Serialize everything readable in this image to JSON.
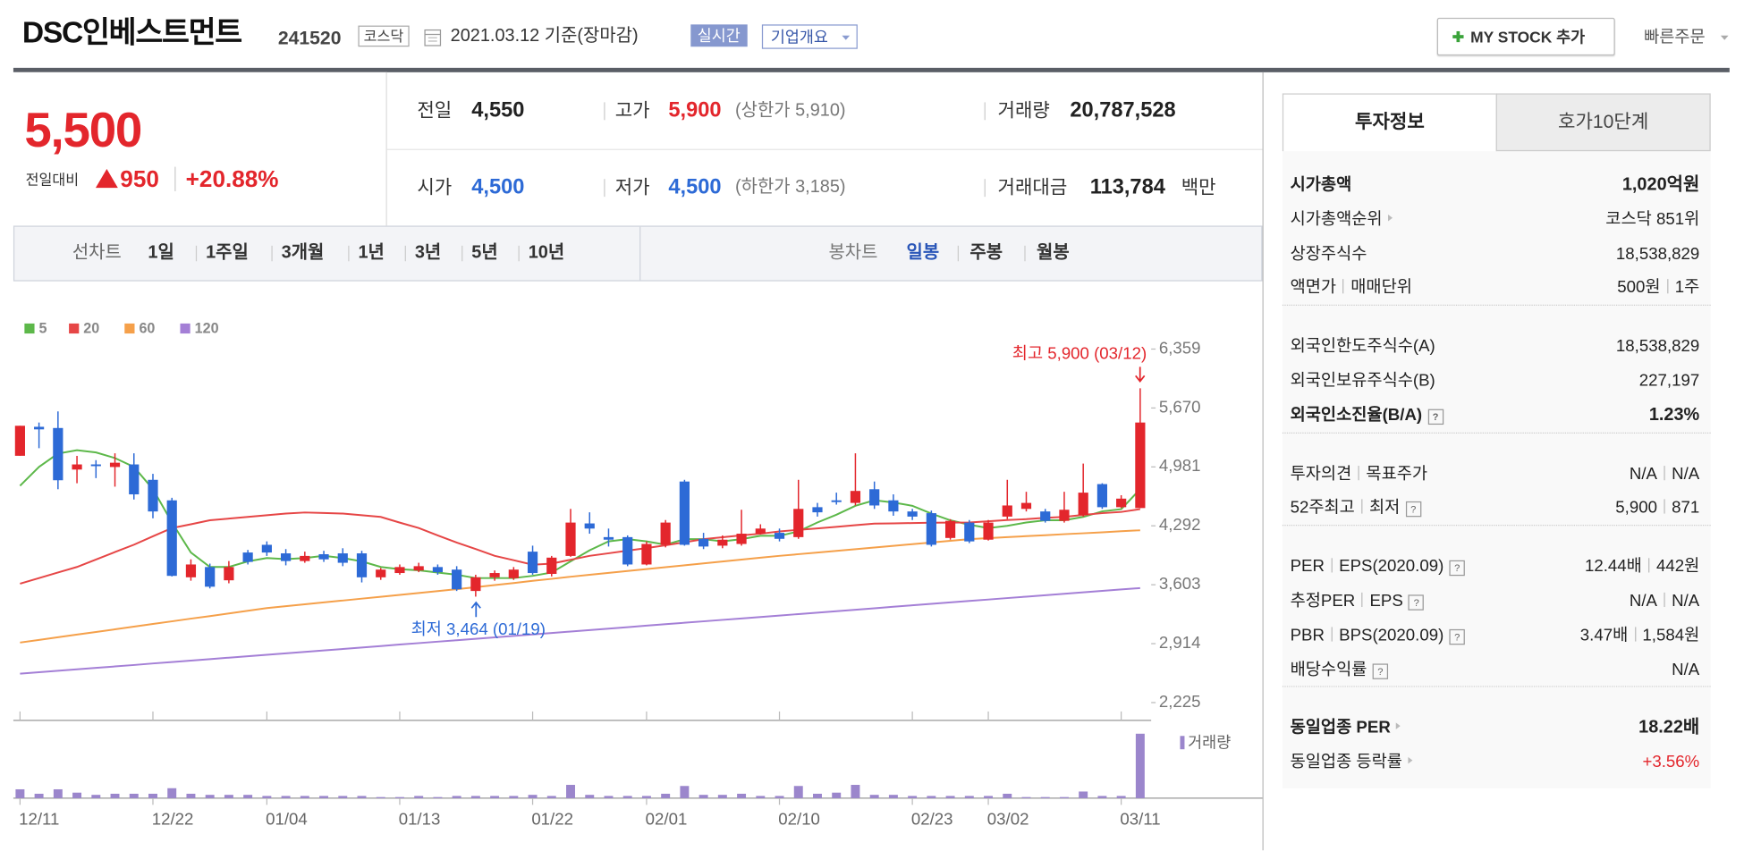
{
  "header": {
    "name": "DSC인베스트먼트",
    "code": "241520",
    "market": "코스닥",
    "date": "2021.03.12 기준(장마감)",
    "realtime": "실시간",
    "company": "기업개요",
    "mystock": "MY STOCK 추가",
    "quick_order": "빠른주문"
  },
  "price": {
    "current": "5,500",
    "change_label": "전일대비",
    "change": "950",
    "change_pct": "+20.88%"
  },
  "summary": {
    "prev": {
      "label": "전일",
      "value": "4,550"
    },
    "high": {
      "label": "고가",
      "value": "5,900",
      "note": "(상한가 5,910)"
    },
    "volume": {
      "label": "거래량",
      "value": "20,787,528"
    },
    "open": {
      "label": "시가",
      "value": "4,500"
    },
    "low": {
      "label": "저가",
      "value": "4,500",
      "note": "(하한가 3,185)"
    },
    "amount": {
      "label": "거래대금",
      "value": "113,784",
      "unit": "백만"
    }
  },
  "tabs": {
    "line_label": "선차트",
    "periods": [
      "1일",
      "1주일",
      "3개월",
      "1년",
      "3년",
      "5년",
      "10년"
    ],
    "candle_label": "봉차트",
    "candle_periods": [
      "일봉",
      "주봉",
      "월봉"
    ],
    "selected_candle": "일봉"
  },
  "chart_data": {
    "type": "candlestick",
    "up_color": "#e3262c",
    "down_color": "#2d6ad6",
    "categories": [
      "12/11",
      null,
      null,
      null,
      null,
      null,
      null,
      "12/22",
      null,
      null,
      null,
      null,
      null,
      "01/04",
      null,
      null,
      null,
      null,
      null,
      null,
      "01/13",
      null,
      null,
      null,
      null,
      null,
      null,
      "01/22",
      null,
      null,
      null,
      null,
      null,
      "02/01",
      null,
      null,
      null,
      null,
      null,
      null,
      "02/10",
      null,
      null,
      null,
      null,
      null,
      null,
      "02/23",
      null,
      null,
      null,
      "03/02",
      null,
      null,
      null,
      null,
      null,
      null,
      "03/11",
      null
    ],
    "ylim": [
      2017,
      6411
    ],
    "yticks": [
      {
        "value": 6359,
        "label": "6,359"
      },
      {
        "value": 5670,
        "label": "5,670"
      },
      {
        "value": 4981,
        "label": "4,981"
      },
      {
        "value": 4292,
        "label": "4,292"
      },
      {
        "value": 3603,
        "label": "3,603"
      },
      {
        "value": 2914,
        "label": "2,914"
      },
      {
        "value": 2225,
        "label": "2,225"
      }
    ],
    "candles": [
      {
        "open": 5111,
        "high": 5462,
        "low": 5111,
        "close": 5462
      },
      {
        "open": 5450,
        "high": 5500,
        "low": 5200,
        "close": 5420
      },
      {
        "open": 5436,
        "high": 5630,
        "low": 4720,
        "close": 4825
      },
      {
        "open": 4950,
        "high": 5110,
        "low": 4790,
        "close": 5010
      },
      {
        "open": 5010,
        "high": 5060,
        "low": 4850,
        "close": 4990
      },
      {
        "open": 4980,
        "high": 5140,
        "low": 4750,
        "close": 5030
      },
      {
        "open": 5010,
        "high": 5140,
        "low": 4600,
        "close": 4660
      },
      {
        "open": 4830,
        "high": 4900,
        "low": 4380,
        "close": 4460
      },
      {
        "open": 4590,
        "high": 4620,
        "low": 3700,
        "close": 3707
      },
      {
        "open": 3690,
        "high": 3900,
        "low": 3650,
        "close": 3840
      },
      {
        "open": 3810,
        "high": 3850,
        "low": 3560,
        "close": 3580
      },
      {
        "open": 3655,
        "high": 3880,
        "low": 3620,
        "close": 3810
      },
      {
        "open": 3980,
        "high": 4010,
        "low": 3840,
        "close": 3870
      },
      {
        "open": 4070,
        "high": 4110,
        "low": 3940,
        "close": 3980
      },
      {
        "open": 3970,
        "high": 4020,
        "low": 3830,
        "close": 3880
      },
      {
        "open": 3880,
        "high": 3990,
        "low": 3860,
        "close": 3940
      },
      {
        "open": 3960,
        "high": 4000,
        "low": 3870,
        "close": 3900
      },
      {
        "open": 3970,
        "high": 4030,
        "low": 3820,
        "close": 3860
      },
      {
        "open": 3970,
        "high": 4000,
        "low": 3630,
        "close": 3690
      },
      {
        "open": 3690,
        "high": 3800,
        "low": 3660,
        "close": 3780
      },
      {
        "open": 3740,
        "high": 3840,
        "low": 3720,
        "close": 3810
      },
      {
        "open": 3770,
        "high": 3860,
        "low": 3750,
        "close": 3820
      },
      {
        "open": 3810,
        "high": 3840,
        "low": 3720,
        "close": 3750
      },
      {
        "open": 3780,
        "high": 3820,
        "low": 3530,
        "close": 3550
      },
      {
        "open": 3530,
        "high": 3720,
        "low": 3464,
        "close": 3690
      },
      {
        "open": 3690,
        "high": 3770,
        "low": 3650,
        "close": 3740
      },
      {
        "open": 3680,
        "high": 3810,
        "low": 3660,
        "close": 3780
      },
      {
        "open": 3990,
        "high": 4060,
        "low": 3720,
        "close": 3740
      },
      {
        "open": 3730,
        "high": 3940,
        "low": 3700,
        "close": 3920
      },
      {
        "open": 3940,
        "high": 4490,
        "low": 3930,
        "close": 4330
      },
      {
        "open": 4320,
        "high": 4450,
        "low": 4200,
        "close": 4260
      },
      {
        "open": 4160,
        "high": 4260,
        "low": 4050,
        "close": 4130
      },
      {
        "open": 4160,
        "high": 4180,
        "low": 3820,
        "close": 3840
      },
      {
        "open": 3840,
        "high": 4110,
        "low": 3830,
        "close": 4080
      },
      {
        "open": 4070,
        "high": 4360,
        "low": 4040,
        "close": 4330
      },
      {
        "open": 4810,
        "high": 4830,
        "low": 4060,
        "close": 4070
      },
      {
        "open": 4140,
        "high": 4210,
        "low": 4020,
        "close": 4050
      },
      {
        "open": 4060,
        "high": 4180,
        "low": 4030,
        "close": 4130
      },
      {
        "open": 4080,
        "high": 4480,
        "low": 4060,
        "close": 4200
      },
      {
        "open": 4200,
        "high": 4310,
        "low": 4190,
        "close": 4260
      },
      {
        "open": 4210,
        "high": 4260,
        "low": 4110,
        "close": 4140
      },
      {
        "open": 4160,
        "high": 4830,
        "low": 4140,
        "close": 4490
      },
      {
        "open": 4510,
        "high": 4560,
        "low": 4400,
        "close": 4450
      },
      {
        "open": 4590,
        "high": 4680,
        "low": 4540,
        "close": 4570
      },
      {
        "open": 4560,
        "high": 5140,
        "low": 4530,
        "close": 4700
      },
      {
        "open": 4720,
        "high": 4810,
        "low": 4490,
        "close": 4530
      },
      {
        "open": 4590,
        "high": 4660,
        "low": 4410,
        "close": 4460
      },
      {
        "open": 4460,
        "high": 4490,
        "low": 4360,
        "close": 4400
      },
      {
        "open": 4440,
        "high": 4470,
        "low": 4050,
        "close": 4070
      },
      {
        "open": 4150,
        "high": 4370,
        "low": 4130,
        "close": 4350
      },
      {
        "open": 4330,
        "high": 4360,
        "low": 4090,
        "close": 4110
      },
      {
        "open": 4130,
        "high": 4360,
        "low": 4120,
        "close": 4330
      },
      {
        "open": 4400,
        "high": 4830,
        "low": 4370,
        "close": 4530
      },
      {
        "open": 4490,
        "high": 4690,
        "low": 4460,
        "close": 4560
      },
      {
        "open": 4460,
        "high": 4490,
        "low": 4330,
        "close": 4350
      },
      {
        "open": 4350,
        "high": 4690,
        "low": 4330,
        "close": 4480
      },
      {
        "open": 4420,
        "high": 5020,
        "low": 4400,
        "close": 4680
      },
      {
        "open": 4780,
        "high": 4790,
        "low": 4490,
        "close": 4510
      },
      {
        "open": 4510,
        "high": 4650,
        "low": 4500,
        "close": 4610
      },
      {
        "open": 4500,
        "high": 5900,
        "low": 4500,
        "close": 5500
      }
    ],
    "series": [
      {
        "name": "5",
        "color": "#5db84a",
        "values": [
          4760,
          4981,
          5137,
          5176,
          5150,
          5085,
          4981,
          4721,
          4331,
          3980,
          3811,
          3811,
          3876,
          3915,
          3902,
          3915,
          3941,
          3915,
          3876,
          3811,
          3785,
          3772,
          3746,
          3720,
          3681,
          3681,
          3681,
          3707,
          3746,
          3876,
          4006,
          4110,
          4136,
          4110,
          4071,
          4136,
          4136,
          4110,
          4136,
          4175,
          4175,
          4227,
          4331,
          4422,
          4526,
          4591,
          4565,
          4526,
          4435,
          4357,
          4305,
          4266,
          4292,
          4331,
          4357,
          4357,
          4396,
          4461,
          4487,
          4721
        ]
      },
      {
        "name": "20",
        "color": "#e64646",
        "values": [
          3616,
          3681,
          3746,
          3811,
          3898,
          3985,
          4071,
          4170,
          4266,
          4310,
          4357,
          4377,
          4396,
          4415,
          4435,
          4448,
          4442,
          4435,
          4415,
          4396,
          4330,
          4266,
          4180,
          4097,
          4020,
          3941,
          3890,
          3837,
          3850,
          3895,
          3941,
          3971,
          4002,
          4032,
          4065,
          4100,
          4136,
          4158,
          4180,
          4200,
          4227,
          4245,
          4262,
          4280,
          4300,
          4318,
          4320,
          4325,
          4328,
          4330,
          4331,
          4345,
          4360,
          4370,
          4385,
          4396,
          4420,
          4440,
          4455,
          4487
        ]
      },
      {
        "name": "60",
        "color": "#f5a04a",
        "values": [
          2927,
          2958,
          2989,
          3020,
          3051,
          3082,
          3113,
          3144,
          3175,
          3206,
          3237,
          3268,
          3299,
          3330,
          3352,
          3374,
          3396,
          3418,
          3440,
          3462,
          3485,
          3507,
          3529,
          3551,
          3575,
          3599,
          3623,
          3648,
          3672,
          3696,
          3720,
          3742,
          3764,
          3786,
          3808,
          3831,
          3853,
          3875,
          3897,
          3919,
          3941,
          3961,
          3980,
          4000,
          4019,
          4039,
          4058,
          4078,
          4097,
          4117,
          4136,
          4148,
          4159,
          4171,
          4182,
          4194,
          4205,
          4217,
          4229,
          4240
        ]
      },
      {
        "name": "120",
        "color": "#a47fd6",
        "values": [
          2563,
          2580,
          2597,
          2614,
          2631,
          2648,
          2665,
          2682,
          2699,
          2716,
          2733,
          2750,
          2767,
          2784,
          2801,
          2818,
          2835,
          2852,
          2869,
          2886,
          2903,
          2920,
          2937,
          2954,
          2971,
          2988,
          3005,
          3022,
          3039,
          3056,
          3073,
          3090,
          3107,
          3124,
          3141,
          3158,
          3175,
          3192,
          3209,
          3226,
          3243,
          3260,
          3277,
          3294,
          3311,
          3328,
          3345,
          3362,
          3379,
          3396,
          3413,
          3430,
          3447,
          3464,
          3481,
          3498,
          3515,
          3532,
          3549,
          3564
        ]
      }
    ],
    "volume": {
      "name": "거래량",
      "color": "#9b86cc",
      "values": [
        2864000,
        1432000,
        2864000,
        1790000,
        1074000,
        1432000,
        1432000,
        1432000,
        3222000,
        1432000,
        1074000,
        1074000,
        1074000,
        716000,
        716000,
        716000,
        716000,
        716000,
        716000,
        358000,
        358000,
        716000,
        358000,
        716000,
        716000,
        716000,
        716000,
        1074000,
        716000,
        4296000,
        1074000,
        716000,
        716000,
        716000,
        1432000,
        3938000,
        1074000,
        1074000,
        1432000,
        716000,
        716000,
        3938000,
        1432000,
        1790000,
        4296000,
        1074000,
        1074000,
        716000,
        716000,
        716000,
        716000,
        716000,
        1432000,
        358000,
        358000,
        358000,
        2148000,
        716000,
        716000,
        20787528
      ]
    },
    "annotations": [
      {
        "text": "최고 5,900 (03/12)",
        "color": "#e3262c"
      },
      {
        "text": "최저 3,464 (01/19)",
        "color": "#2d6ad6"
      }
    ]
  },
  "info": {
    "tabs": [
      "투자정보",
      "호가10단계"
    ],
    "groups": [
      [
        {
          "label": [
            "시가총액"
          ],
          "value": [
            "1,020억원"
          ],
          "bold": true
        },
        {
          "label": [
            "시가총액순위"
          ],
          "value": [
            "코스닥 851위"
          ],
          "link": true
        },
        {
          "label": [
            "상장주식수"
          ],
          "value": [
            "18,538,829"
          ]
        },
        {
          "label": [
            "액면가",
            "매매단위"
          ],
          "value": [
            "500원",
            "1주"
          ]
        }
      ],
      [
        {
          "label": [
            "외국인한도주식수(A)"
          ],
          "value": [
            "18,538,829"
          ]
        },
        {
          "label": [
            "외국인보유주식수(B)"
          ],
          "value": [
            "227,197"
          ]
        },
        {
          "label": [
            "외국인소진율(B/A)"
          ],
          "value": [
            "1.23%"
          ],
          "bold": true,
          "help": true
        }
      ],
      [
        {
          "label": [
            "투자의견",
            "목표주가"
          ],
          "value": [
            "N/A",
            "N/A"
          ]
        },
        {
          "label": [
            "52주최고",
            "최저"
          ],
          "value": [
            "5,900",
            "871"
          ],
          "help": true
        }
      ],
      [
        {
          "label": [
            "PER",
            "EPS(2020.09)"
          ],
          "value": [
            "12.44배",
            "442원"
          ],
          "help": true
        },
        {
          "label": [
            "추정PER",
            "EPS"
          ],
          "value": [
            "N/A",
            "N/A"
          ],
          "help": true
        },
        {
          "label": [
            "PBR",
            "BPS(2020.09)"
          ],
          "value": [
            "3.47배",
            "1,584원"
          ],
          "help": true
        },
        {
          "label": [
            "배당수익률"
          ],
          "value": [
            "N/A"
          ],
          "help": true
        }
      ],
      [
        {
          "label": [
            "동일업종 PER"
          ],
          "value": [
            "18.22배"
          ],
          "bold": true,
          "link": true
        },
        {
          "label": [
            "동일업종 등락률"
          ],
          "value": [
            "+3.56%"
          ],
          "link": true,
          "color": "#e3262c"
        }
      ]
    ]
  }
}
